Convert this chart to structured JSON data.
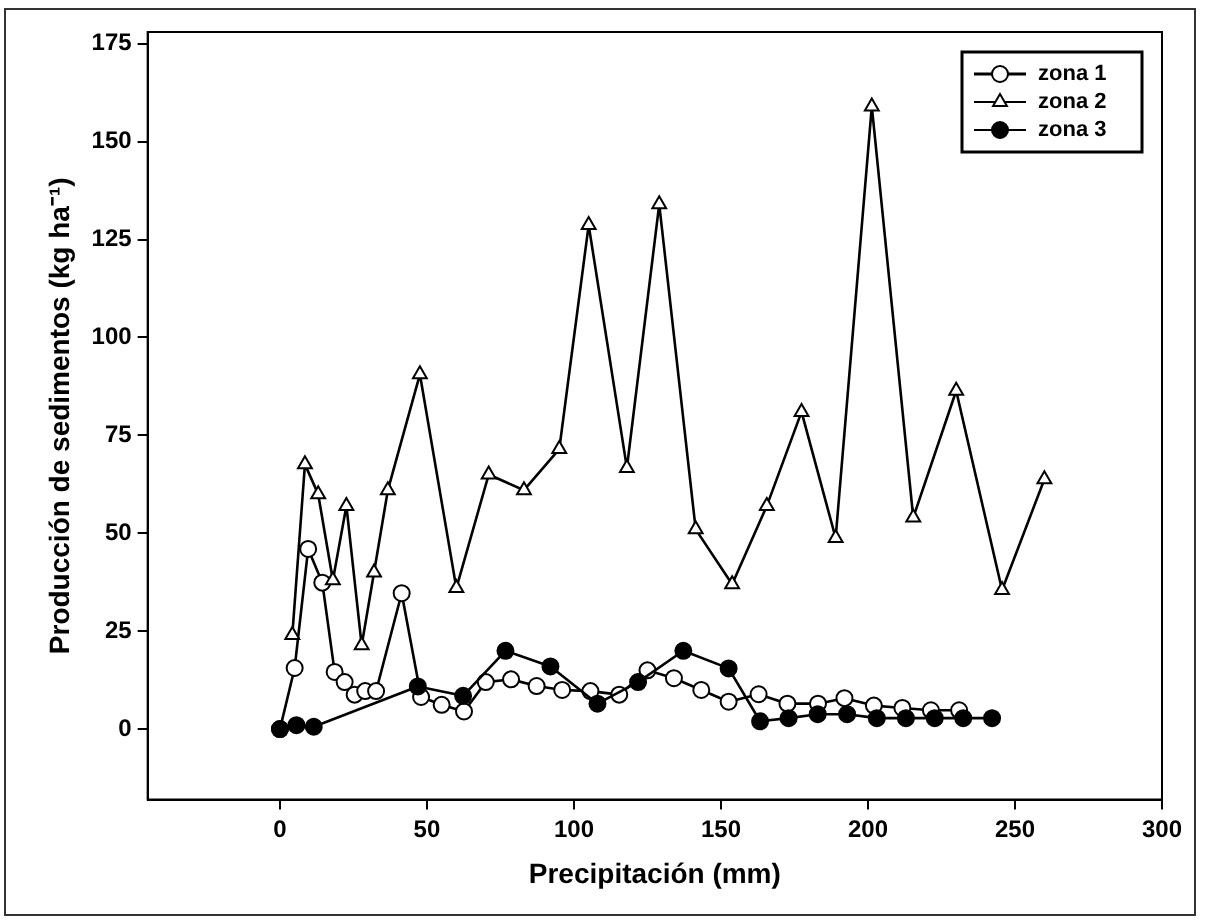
{
  "chart_data": {
    "type": "line",
    "xlabel": "Precipitación (mm)",
    "ylabel": "Producción de sedimentos (kg ha⁻¹)",
    "xlim": [
      -45,
      300
    ],
    "xticks": [
      0,
      50,
      100,
      150,
      200,
      250,
      300
    ],
    "ylim": [
      -18,
      178
    ],
    "yticks": [
      0,
      25,
      50,
      75,
      100,
      125,
      150,
      175
    ],
    "grid": false,
    "legend": "top right",
    "line_style": "solid",
    "series": [
      {
        "name": "zona 1",
        "color": "#000000",
        "marker": "circle",
        "x": [
          0,
          5,
          9.6,
          14.4,
          18.6,
          22,
          25.4,
          29,
          32.7,
          41.4,
          48,
          55,
          62.6,
          70,
          78.6,
          87.3,
          96,
          105.6,
          115.4,
          125,
          134,
          143.3,
          152.6,
          162.8,
          172.6,
          183,
          192,
          202,
          211.7,
          221.4,
          231
        ],
        "values": [
          0,
          15.6,
          46,
          37.4,
          14.6,
          12,
          8.8,
          9.7,
          9.7,
          34.7,
          8.2,
          6.2,
          4.5,
          12,
          12.7,
          11,
          10,
          9.7,
          8.8,
          15,
          13,
          10,
          7,
          8.9,
          6.5,
          6.5,
          7.9,
          6,
          5.4,
          4.8,
          4.8
        ]
      },
      {
        "name": "zona 2",
        "color": "#000000",
        "marker": "triangle",
        "x": [
          4.2,
          8.5,
          13,
          18,
          22.6,
          27.8,
          32,
          36.7,
          47.6,
          60,
          71,
          83,
          95,
          105,
          118,
          129,
          141.4,
          153.8,
          165.6,
          177.4,
          189,
          201.3,
          215.4,
          230,
          245.6,
          260
        ],
        "values": [
          24,
          67.6,
          60,
          38,
          57,
          21.4,
          40,
          61,
          90.6,
          36,
          65,
          61,
          71.5,
          128.7,
          66.7,
          134,
          51,
          37,
          57,
          81,
          48.8,
          159,
          54,
          86.4,
          35.5,
          63.8
        ]
      },
      {
        "name": "zona 3",
        "color": "#000000",
        "marker": "circle",
        "x": [
          0,
          5.6,
          11.5,
          46.9,
          62.3,
          76.7,
          92,
          108,
          121.8,
          137.2,
          152.6,
          163.3,
          173,
          182.9,
          192.9,
          203,
          212.9,
          222.7,
          232.4,
          242.2
        ],
        "values": [
          0,
          1,
          0.6,
          10.9,
          8.5,
          20,
          16,
          6.5,
          12,
          20,
          15.5,
          2,
          2.8,
          3.8,
          3.8,
          2.8,
          2.8,
          2.8,
          2.8,
          2.8
        ]
      }
    ]
  }
}
